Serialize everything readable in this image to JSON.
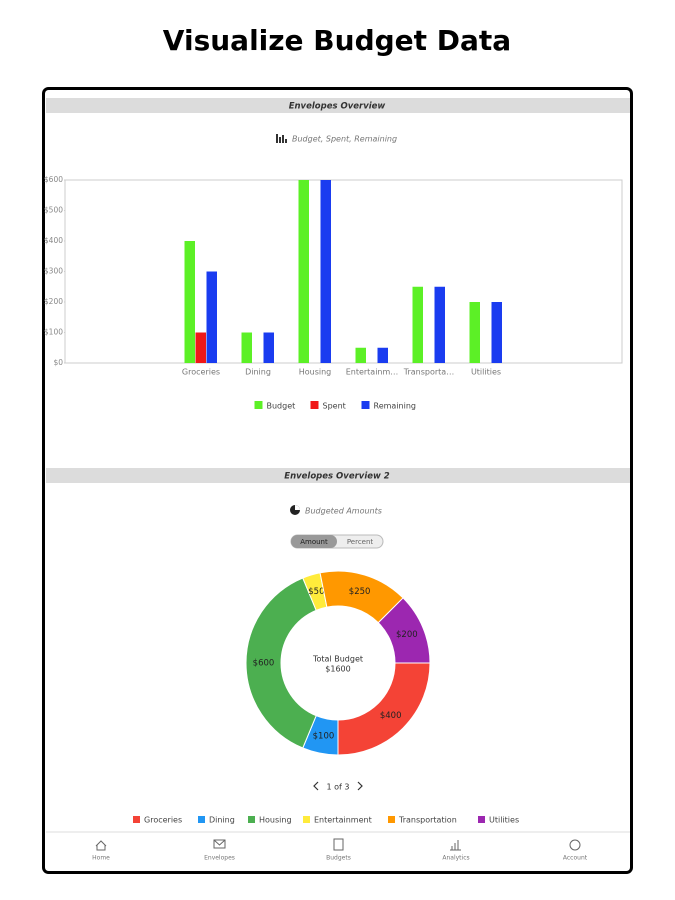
{
  "header": {
    "title": "Visualize Budget Data"
  },
  "chart_data": [
    {
      "type": "bar",
      "title": "Envelopes Overview",
      "subtitle": "Budget, Spent, Remaining",
      "categories": [
        "Groceries",
        "Dining",
        "Housing",
        "Entertainm…",
        "Transporta…",
        "Utilities"
      ],
      "series": [
        {
          "name": "Budget",
          "color": "#5cf026",
          "values": [
            400,
            100,
            600,
            50,
            250,
            200
          ]
        },
        {
          "name": "Spent",
          "color": "#f01818",
          "values": [
            100,
            0,
            0,
            0,
            0,
            0
          ]
        },
        {
          "name": "Remaining",
          "color": "#1a3cf0",
          "values": [
            300,
            100,
            600,
            50,
            250,
            200
          ]
        }
      ],
      "ylim": [
        0,
        600
      ],
      "yticks": [
        {
          "value": 0,
          "label": "$0"
        },
        {
          "value": 100,
          "label": "$100"
        },
        {
          "value": 200,
          "label": "$200"
        },
        {
          "value": 300,
          "label": "$300"
        },
        {
          "value": 400,
          "label": "$400"
        },
        {
          "value": 500,
          "label": "$500"
        },
        {
          "value": 600,
          "label": "$600"
        }
      ],
      "legend": "bottom"
    },
    {
      "type": "donut",
      "title": "Envelopes Overview 2",
      "subtitle": "Budgeted Amounts",
      "toggle_options": [
        "Amount",
        "Percent"
      ],
      "categories": [
        "Groceries",
        "Dining",
        "Housing",
        "Entertainment",
        "Transportation",
        "Utilities"
      ],
      "values": [
        400,
        100,
        600,
        50,
        250,
        200
      ],
      "value_labels": [
        "$400",
        "$100",
        "$600",
        "$50",
        "$250",
        "$200"
      ],
      "colors": [
        "#f44336",
        "#2196f3",
        "#4caf50",
        "#ffeb3b",
        "#ff9800",
        "#9c27b0"
      ],
      "center_title": "Total Budget",
      "center_value": "$1600",
      "pager": "1 of 3",
      "legend": "bottom"
    }
  ],
  "nav": {
    "items": [
      "Home",
      "Envelopes",
      "Budgets",
      "Analytics",
      "Account"
    ]
  }
}
